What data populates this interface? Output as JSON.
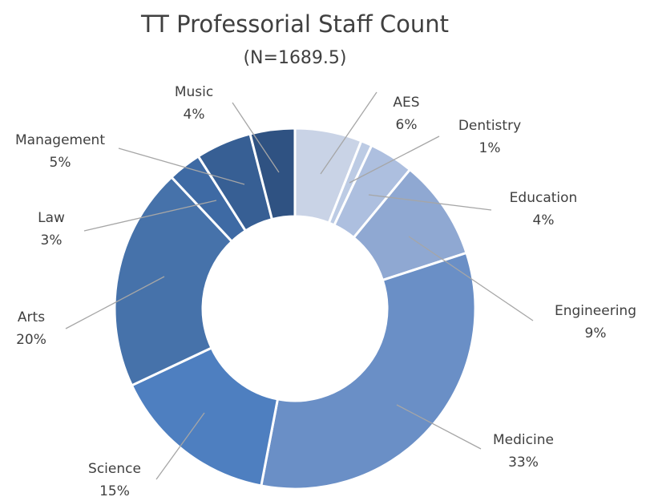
{
  "chart_data": {
    "type": "donut",
    "title": "TT Professorial Staff Count",
    "subtitle": "(N=1689.5)",
    "categories": [
      "AES",
      "Dentistry",
      "Education",
      "Engineering",
      "Medicine",
      "Science",
      "Arts",
      "Law",
      "Management",
      "Music"
    ],
    "values": [
      6,
      1,
      4,
      9,
      33,
      15,
      20,
      3,
      5,
      4
    ],
    "value_labels": [
      "6%",
      "1%",
      "4%",
      "9%",
      "33%",
      "15%",
      "20%",
      "3%",
      "5%",
      "4%"
    ],
    "colors": [
      "#c9d3e6",
      "#bccbe4",
      "#adbfdf",
      "#8fa8d2",
      "#6a8fc6",
      "#4e7fc0",
      "#4672aa",
      "#3e6aa4",
      "#375f94",
      "#2f5282"
    ]
  }
}
